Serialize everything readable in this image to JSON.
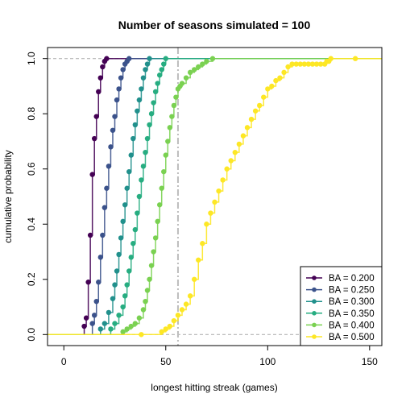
{
  "chart_data": {
    "type": "scatter",
    "title": "Number of seasons simulated = 100",
    "xlabel": "longest hitting streak (games)",
    "ylabel": "cumulative probability",
    "xlim": [
      -8,
      156
    ],
    "ylim": [
      -0.04,
      1.04
    ],
    "x_ticks": [
      0,
      50,
      100,
      150
    ],
    "x_tick_labels": [
      "0",
      "50",
      "100",
      "150"
    ],
    "y_ticks": [
      0.0,
      0.2,
      0.4,
      0.6,
      0.8,
      1.0
    ],
    "y_tick_labels": [
      "0.0",
      "0.2",
      "0.4",
      "0.6",
      "0.8",
      "1.0"
    ],
    "reference_lines": {
      "horizontal": [
        0,
        1
      ],
      "vertical": 56
    },
    "legend_position": "bottom-right",
    "series": [
      {
        "name": "BA = 0.200",
        "color": "#440154",
        "x": [
          10,
          11,
          12,
          13,
          14,
          15,
          16,
          17,
          18,
          19,
          20,
          21
        ],
        "y": [
          0.03,
          0.06,
          0.19,
          0.36,
          0.58,
          0.71,
          0.79,
          0.88,
          0.93,
          0.97,
          0.99,
          1.0
        ]
      },
      {
        "name": "BA = 0.250",
        "color": "#3B528B",
        "x": [
          14,
          15,
          16,
          17,
          18,
          19,
          20,
          21,
          22,
          23,
          24,
          25,
          26,
          27,
          28,
          29,
          30,
          31,
          32
        ],
        "y": [
          0.04,
          0.07,
          0.12,
          0.19,
          0.28,
          0.36,
          0.46,
          0.53,
          0.61,
          0.68,
          0.74,
          0.79,
          0.85,
          0.89,
          0.93,
          0.96,
          0.98,
          0.99,
          1.0
        ]
      },
      {
        "name": "BA = 0.300",
        "color": "#21908C",
        "x": [
          18,
          20,
          22,
          24,
          25,
          26,
          27,
          28,
          29,
          30,
          31,
          32,
          33,
          34,
          35,
          36,
          37,
          38,
          39,
          40,
          41,
          42
        ],
        "y": [
          0.02,
          0.04,
          0.08,
          0.13,
          0.18,
          0.23,
          0.29,
          0.35,
          0.41,
          0.47,
          0.53,
          0.59,
          0.65,
          0.71,
          0.76,
          0.81,
          0.85,
          0.89,
          0.93,
          0.96,
          0.98,
          1.0
        ]
      },
      {
        "name": "BA = 0.350",
        "color": "#27AD81",
        "x": [
          23,
          25,
          27,
          29,
          30,
          31,
          32,
          33,
          34,
          35,
          36,
          37,
          38,
          39,
          40,
          41,
          42,
          43,
          44,
          45,
          46,
          47,
          48,
          49,
          50
        ],
        "y": [
          0.02,
          0.04,
          0.07,
          0.1,
          0.14,
          0.18,
          0.23,
          0.28,
          0.33,
          0.38,
          0.44,
          0.5,
          0.56,
          0.61,
          0.66,
          0.71,
          0.76,
          0.8,
          0.84,
          0.88,
          0.91,
          0.94,
          0.96,
          0.98,
          1.0
        ]
      },
      {
        "name": "BA = 0.400",
        "color": "#7AD151",
        "x": [
          29,
          31,
          33,
          35,
          37,
          39,
          40,
          41,
          42,
          43,
          44,
          45,
          46,
          47,
          48,
          49,
          50,
          51,
          52,
          53,
          54,
          55,
          56,
          57,
          58,
          60,
          62,
          64,
          66,
          68,
          70,
          73
        ],
        "y": [
          0.01,
          0.02,
          0.03,
          0.04,
          0.06,
          0.09,
          0.12,
          0.16,
          0.2,
          0.25,
          0.3,
          0.35,
          0.41,
          0.47,
          0.53,
          0.59,
          0.65,
          0.7,
          0.75,
          0.79,
          0.83,
          0.86,
          0.89,
          0.9,
          0.91,
          0.93,
          0.95,
          0.96,
          0.97,
          0.98,
          0.99,
          1.0
        ]
      },
      {
        "name": "BA = 0.500",
        "color": "#FDE725",
        "x": [
          38,
          48,
          50,
          52,
          54,
          56,
          58,
          60,
          62,
          64,
          66,
          68,
          70,
          72,
          74,
          76,
          78,
          80,
          82,
          84,
          86,
          88,
          90,
          92,
          94,
          96,
          98,
          100,
          102,
          104,
          106,
          108,
          110,
          112,
          114,
          116,
          118,
          120,
          122,
          124,
          126,
          128,
          129,
          130,
          131,
          143
        ],
        "y": [
          0.0,
          0.01,
          0.02,
          0.03,
          0.05,
          0.07,
          0.09,
          0.11,
          0.14,
          0.2,
          0.27,
          0.33,
          0.4,
          0.44,
          0.48,
          0.52,
          0.56,
          0.6,
          0.63,
          0.66,
          0.69,
          0.72,
          0.75,
          0.78,
          0.81,
          0.83,
          0.86,
          0.89,
          0.9,
          0.92,
          0.93,
          0.95,
          0.97,
          0.98,
          0.98,
          0.98,
          0.98,
          0.98,
          0.98,
          0.98,
          0.98,
          0.98,
          0.99,
          0.99,
          1.0,
          1.0
        ]
      }
    ]
  }
}
